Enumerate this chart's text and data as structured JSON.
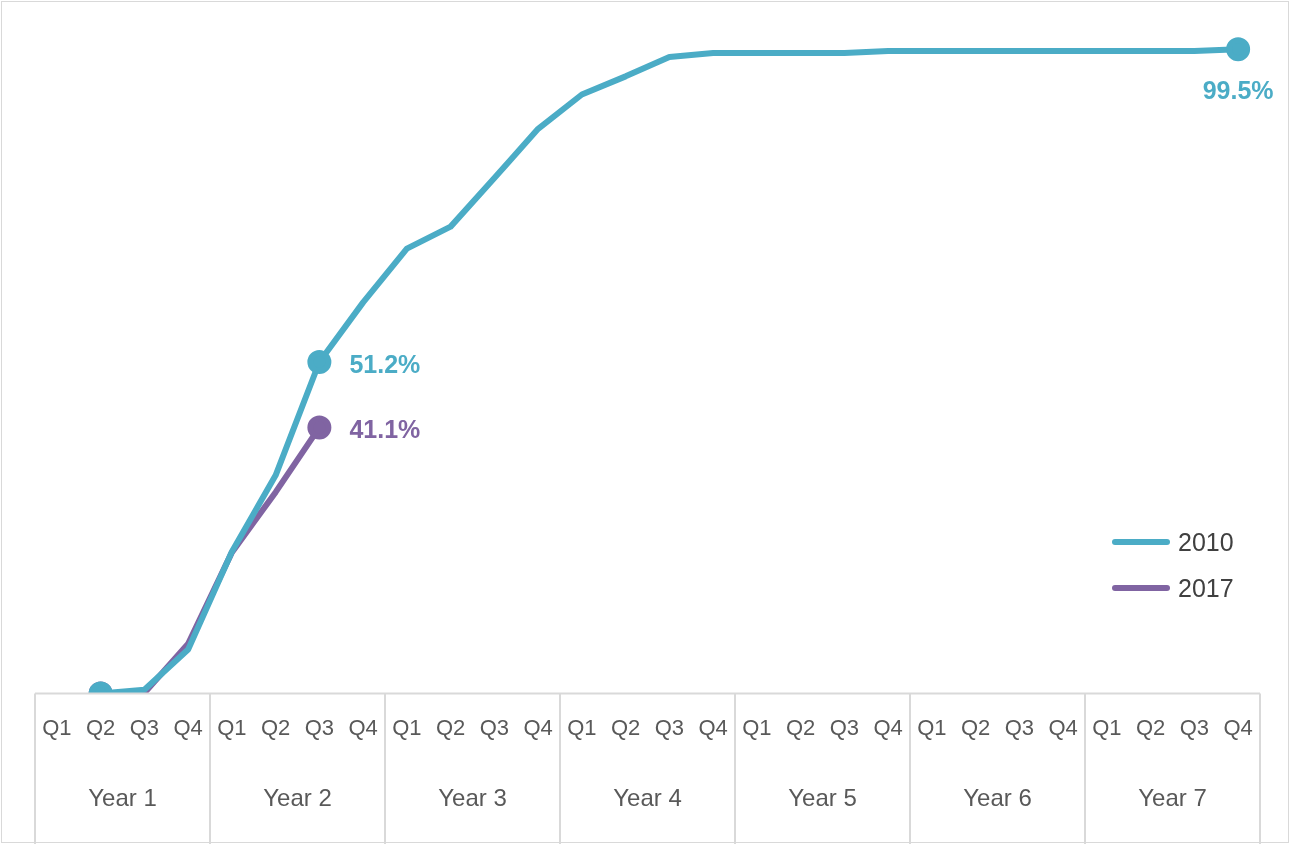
{
  "chart_data": {
    "type": "line",
    "categories": [
      "Q1",
      "Q2",
      "Q3",
      "Q4",
      "Q1",
      "Q2",
      "Q3",
      "Q4",
      "Q1",
      "Q2",
      "Q3",
      "Q4",
      "Q1",
      "Q2",
      "Q3",
      "Q4",
      "Q1",
      "Q2",
      "Q3",
      "Q4",
      "Q1",
      "Q2",
      "Q3",
      "Q4",
      "Q1",
      "Q2",
      "Q3",
      "Q4"
    ],
    "annotations": [
      "Year 1",
      "Year 2",
      "Year 3",
      "Year 4",
      "Year 5",
      "Year 6",
      "Year 7"
    ],
    "series": [
      {
        "name": "2010",
        "color": "#4bacc6",
        "values": [
          null,
          0,
          0.6,
          6.8,
          21.9,
          33.7,
          51.2,
          60.4,
          68.7,
          72.1,
          79.6,
          87.2,
          92.5,
          95.3,
          98.3,
          98.9,
          98.9,
          98.9,
          98.9,
          99.2,
          99.2,
          99.2,
          99.2,
          99.2,
          99.2,
          99.2,
          99.2,
          99.5
        ],
        "value_labels": [
          null,
          null,
          null,
          null,
          null,
          null,
          "51.2%",
          null,
          null,
          null,
          null,
          null,
          null,
          null,
          null,
          null,
          null,
          null,
          null,
          null,
          null,
          null,
          null,
          null,
          null,
          null,
          null,
          "99.5%"
        ]
      },
      {
        "name": "2017",
        "color": "#8064a2",
        "values": [
          null,
          0,
          0.1,
          7.7,
          21.8,
          31.1,
          41.1,
          null,
          null,
          null,
          null,
          null,
          null,
          null,
          null,
          null,
          null,
          null,
          null,
          null,
          null,
          null,
          null,
          null,
          null,
          null,
          null,
          null
        ],
        "value_labels": [
          null,
          null,
          null,
          null,
          null,
          null,
          "41.1%",
          null,
          null,
          null,
          null,
          null,
          null,
          null,
          null,
          null,
          null,
          null,
          null,
          null,
          null,
          null,
          null,
          null,
          null,
          null,
          null,
          null
        ]
      }
    ],
    "legend": "right",
    "grid": false,
    "line_style": "solid"
  }
}
